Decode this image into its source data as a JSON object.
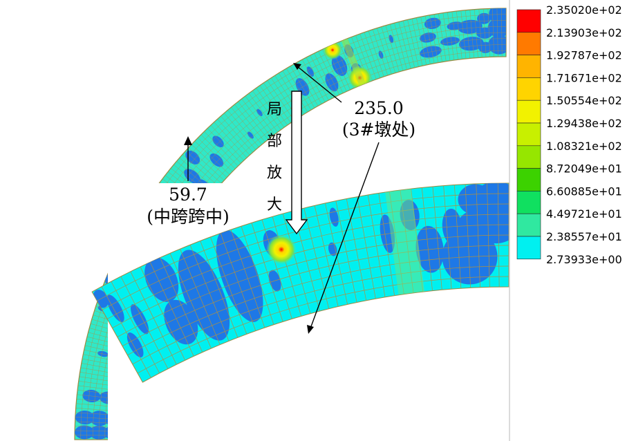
{
  "legend": {
    "labels": [
      "2.35020e+02",
      "2.13903e+02",
      "1.92787e+02",
      "1.71671e+02",
      "1.50554e+02",
      "1.29438e+02",
      "1.08321e+02",
      "8.72049e+01",
      "6.60885e+01",
      "4.49721e+01",
      "2.38557e+01",
      "2.73933e+00"
    ],
    "colors": [
      "#ff0000",
      "#ff7a00",
      "#ffb400",
      "#ffd400",
      "#f2f200",
      "#c8f000",
      "#96e600",
      "#3cd200",
      "#10e060",
      "#30e8a0",
      "#00f0f0",
      "#1e78e6"
    ]
  },
  "annotations": {
    "max_value": "235.0",
    "max_location": "(3#墩处)",
    "mid_value": "59.7",
    "mid_location": "(中跨跨中)",
    "zoom_label": [
      "局",
      "部",
      "放",
      "大"
    ]
  },
  "colors": {
    "base": "#30e8c8",
    "low": "#1e78e6",
    "grid": "#b09040",
    "hot": "#f2f200",
    "peak": "#ff0000"
  }
}
